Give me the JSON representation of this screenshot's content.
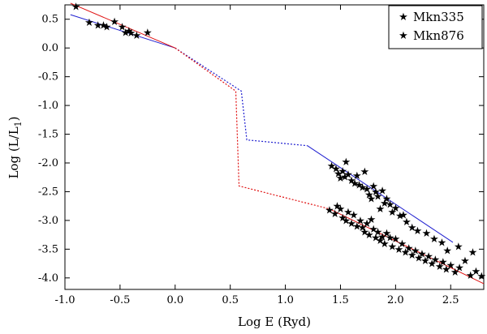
{
  "chart_data": {
    "type": "scatter",
    "title": "",
    "xlabel": "Log E (Ryd)",
    "ylabel_main": "Log (L/L",
    "ylabel_sub": "1",
    "ylabel_close": ")",
    "xlim": [
      -1.0,
      2.8
    ],
    "ylim": [
      -4.2,
      0.75
    ],
    "x_ticks": [
      -1.0,
      -0.5,
      0.0,
      0.5,
      1.0,
      1.5,
      2.0,
      2.5
    ],
    "x_tick_labels": [
      "-1.0",
      "-0.5",
      "0.0",
      "0.5",
      "1.0",
      "1.5",
      "2.0",
      "2.5"
    ],
    "y_ticks": [
      0.5,
      0.0,
      -0.5,
      -1.0,
      -1.5,
      -2.0,
      -2.5,
      -3.0,
      -3.5,
      -4.0
    ],
    "y_tick_labels": [
      "0.5",
      "0.0",
      "-0.5",
      "-1.0",
      "-1.5",
      "-2.0",
      "-2.5",
      "-3.0",
      "-3.5",
      "-4.0"
    ],
    "grid": false,
    "legend_position": "top-right",
    "marker_glyph": "★",
    "series": [
      {
        "name": "Mkn335",
        "color": "#1f1fd0",
        "points": [
          [
            -0.78,
            0.45
          ],
          [
            -0.7,
            0.4
          ],
          [
            -0.62,
            0.37
          ],
          [
            -0.45,
            0.27
          ],
          [
            -0.4,
            0.26
          ],
          [
            -0.35,
            0.22
          ],
          [
            1.42,
            -2.05
          ],
          [
            1.46,
            -2.1
          ],
          [
            1.48,
            -2.18
          ],
          [
            1.5,
            -2.26
          ],
          [
            1.52,
            -2.14
          ],
          [
            1.54,
            -2.24
          ],
          [
            1.55,
            -1.98
          ],
          [
            1.57,
            -2.2
          ],
          [
            1.6,
            -2.3
          ],
          [
            1.63,
            -2.35
          ],
          [
            1.65,
            -2.22
          ],
          [
            1.67,
            -2.38
          ],
          [
            1.7,
            -2.42
          ],
          [
            1.72,
            -2.15
          ],
          [
            1.74,
            -2.45
          ],
          [
            1.76,
            -2.55
          ],
          [
            1.78,
            -2.62
          ],
          [
            1.8,
            -2.4
          ],
          [
            1.82,
            -2.5
          ],
          [
            1.84,
            -2.58
          ],
          [
            1.86,
            -2.8
          ],
          [
            1.88,
            -2.48
          ],
          [
            1.9,
            -2.7
          ],
          [
            1.92,
            -2.62
          ],
          [
            1.95,
            -2.72
          ],
          [
            1.97,
            -2.85
          ],
          [
            2.0,
            -2.78
          ],
          [
            2.04,
            -2.92
          ],
          [
            2.07,
            -2.9
          ],
          [
            2.1,
            -3.02
          ],
          [
            2.15,
            -3.12
          ],
          [
            2.2,
            -3.18
          ],
          [
            2.28,
            -3.22
          ],
          [
            2.35,
            -3.32
          ],
          [
            2.42,
            -3.38
          ],
          [
            2.47,
            -3.52
          ],
          [
            2.57,
            -3.45
          ],
          [
            2.7,
            -3.55
          ]
        ],
        "fit": [
          [
            -0.95,
            0.58
          ],
          [
            0.0,
            0.0
          ]
        ],
        "fit2": [
          [
            1.2,
            -1.7
          ],
          [
            2.52,
            -3.38
          ]
        ],
        "extrapolation": [
          [
            0.0,
            0.0
          ],
          [
            0.6,
            -0.75
          ],
          [
            0.65,
            -1.6
          ],
          [
            1.2,
            -1.7
          ]
        ]
      },
      {
        "name": "Mkn876",
        "color": "#e01010",
        "points": [
          [
            -0.9,
            0.72
          ],
          [
            -0.65,
            0.4
          ],
          [
            -0.55,
            0.46
          ],
          [
            -0.48,
            0.37
          ],
          [
            -0.42,
            0.3
          ],
          [
            -0.25,
            0.27
          ],
          [
            1.4,
            -2.82
          ],
          [
            1.45,
            -2.88
          ],
          [
            1.47,
            -2.75
          ],
          [
            1.5,
            -2.8
          ],
          [
            1.52,
            -2.95
          ],
          [
            1.55,
            -3.0
          ],
          [
            1.57,
            -2.85
          ],
          [
            1.6,
            -3.05
          ],
          [
            1.62,
            -2.9
          ],
          [
            1.65,
            -3.1
          ],
          [
            1.68,
            -3.0
          ],
          [
            1.7,
            -3.12
          ],
          [
            1.72,
            -3.2
          ],
          [
            1.74,
            -3.05
          ],
          [
            1.76,
            -3.25
          ],
          [
            1.78,
            -2.98
          ],
          [
            1.8,
            -3.15
          ],
          [
            1.82,
            -3.3
          ],
          [
            1.84,
            -3.2
          ],
          [
            1.86,
            -3.35
          ],
          [
            1.88,
            -3.28
          ],
          [
            1.9,
            -3.4
          ],
          [
            1.92,
            -3.22
          ],
          [
            1.95,
            -3.3
          ],
          [
            1.97,
            -3.45
          ],
          [
            2.0,
            -3.32
          ],
          [
            2.03,
            -3.5
          ],
          [
            2.06,
            -3.4
          ],
          [
            2.09,
            -3.55
          ],
          [
            2.12,
            -3.48
          ],
          [
            2.15,
            -3.6
          ],
          [
            2.18,
            -3.52
          ],
          [
            2.21,
            -3.65
          ],
          [
            2.24,
            -3.58
          ],
          [
            2.27,
            -3.7
          ],
          [
            2.3,
            -3.62
          ],
          [
            2.33,
            -3.75
          ],
          [
            2.36,
            -3.68
          ],
          [
            2.4,
            -3.8
          ],
          [
            2.43,
            -3.72
          ],
          [
            2.46,
            -3.85
          ],
          [
            2.5,
            -3.78
          ],
          [
            2.54,
            -3.9
          ],
          [
            2.58,
            -3.82
          ],
          [
            2.63,
            -3.7
          ],
          [
            2.68,
            -3.95
          ],
          [
            2.73,
            -3.88
          ],
          [
            2.78,
            -3.97
          ]
        ],
        "fit": [
          [
            -0.95,
            0.78
          ],
          [
            0.0,
            0.0
          ]
        ],
        "fit2": [
          [
            1.4,
            -2.8
          ],
          [
            2.8,
            -4.1
          ]
        ],
        "extrapolation": [
          [
            0.0,
            0.0
          ],
          [
            0.55,
            -0.75
          ],
          [
            0.58,
            -2.4
          ],
          [
            1.4,
            -2.8
          ]
        ]
      }
    ]
  }
}
